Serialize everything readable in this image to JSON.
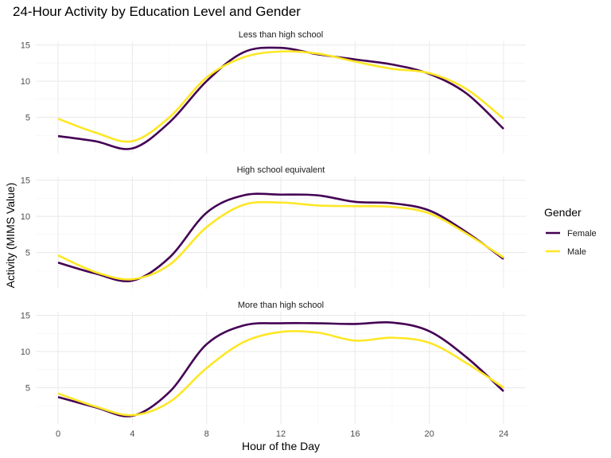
{
  "chart_data": {
    "type": "line",
    "title": "24-Hour Activity by Education Level and Gender",
    "xlabel": "Hour of the Day",
    "ylabel": "Activity (MIMS Value)",
    "xlim": [
      -1.2,
      25.2
    ],
    "ylim": [
      0,
      15.5
    ],
    "x_ticks": [
      0,
      4,
      8,
      12,
      16,
      20,
      24
    ],
    "y_ticks": [
      5,
      10,
      15
    ],
    "grid": true,
    "legend": {
      "title": "Gender",
      "position": "right",
      "entries": [
        {
          "name": "Female",
          "color": "#440154"
        },
        {
          "name": "Male",
          "color": "#FDE725"
        }
      ]
    },
    "panels": [
      {
        "label": "Less than high school",
        "x": [
          0,
          2,
          4,
          6,
          8,
          10,
          12,
          14,
          16,
          18,
          20,
          22,
          24
        ],
        "series": [
          {
            "name": "Female",
            "values": [
              2.4,
              1.7,
              0.7,
              4.3,
              10.0,
              14.0,
              14.6,
              13.7,
              13.0,
              12.3,
              11.0,
              8.3,
              3.4
            ]
          },
          {
            "name": "Male",
            "values": [
              4.8,
              2.9,
              1.7,
              5.0,
              10.5,
              13.3,
              14.1,
              13.8,
              12.7,
              11.7,
              11.1,
              8.9,
              4.8
            ]
          }
        ]
      },
      {
        "label": "High school equivalent",
        "x": [
          0,
          2,
          4,
          6,
          8,
          10,
          12,
          14,
          16,
          18,
          20,
          22,
          24
        ],
        "series": [
          {
            "name": "Female",
            "values": [
              3.6,
              2.1,
              1.1,
              4.3,
              10.5,
              12.9,
              13.0,
              12.9,
              12.0,
              11.8,
              10.8,
              7.8,
              4.1
            ]
          },
          {
            "name": "Male",
            "values": [
              4.6,
              2.3,
              1.3,
              3.3,
              8.5,
              11.6,
              11.9,
              11.5,
              11.4,
              11.3,
              10.4,
              7.6,
              4.3
            ]
          }
        ]
      },
      {
        "label": "More than high school",
        "x": [
          0,
          2,
          4,
          6,
          8,
          10,
          12,
          14,
          16,
          18,
          20,
          22,
          24
        ],
        "series": [
          {
            "name": "Female",
            "values": [
              3.7,
              2.3,
              1.1,
              4.4,
              11.0,
              13.6,
              13.9,
              13.9,
              13.8,
              14.0,
              12.8,
              9.2,
              4.5
            ]
          },
          {
            "name": "Male",
            "values": [
              4.2,
              2.4,
              1.2,
              3.0,
              7.7,
              11.3,
              12.7,
              12.6,
              11.5,
              11.9,
              11.2,
              8.4,
              5.0
            ]
          }
        ]
      }
    ]
  }
}
